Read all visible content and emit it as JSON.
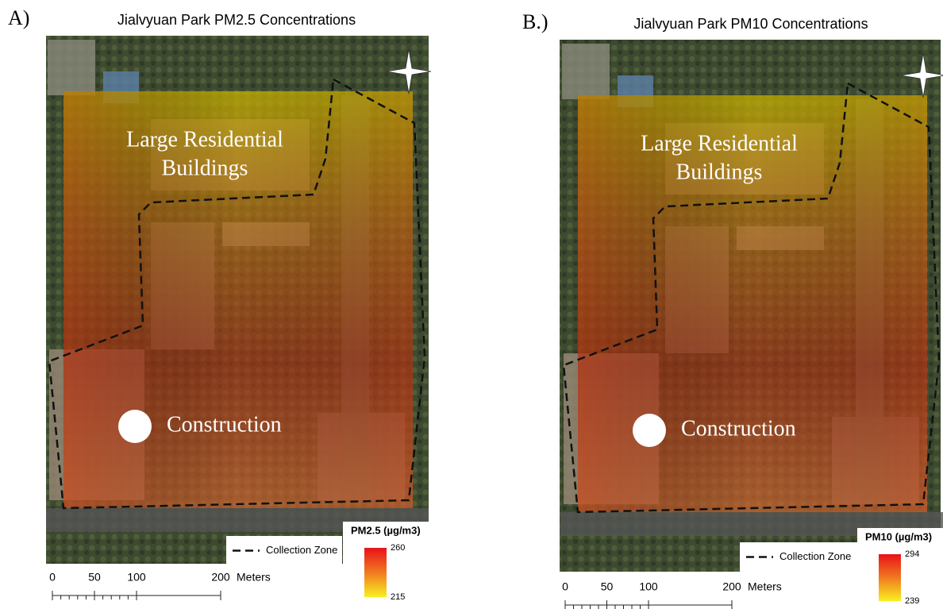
{
  "panels": [
    {
      "label": "A)",
      "title": "Jialvyuan Park PM2.5 Concentrations",
      "annotations": {
        "residential": [
          "Large Residential",
          "Buildings"
        ],
        "construction": "Construction"
      },
      "legend": {
        "title": "PM2.5 (µg/m3)",
        "max": 260,
        "min": 215,
        "collection_zone": "Collection Zone"
      },
      "scale_bar": {
        "ticks": [
          0,
          50,
          100,
          200
        ],
        "unit": "Meters"
      }
    },
    {
      "label": "B.)",
      "title": "Jialvyuan Park PM10 Concentrations",
      "annotations": {
        "residential": [
          "Large Residential",
          "Buildings"
        ],
        "construction": "Construction"
      },
      "legend": {
        "title": "PM10 (µg/m3)",
        "max": 294,
        "min": 239,
        "collection_zone": "Collection Zone"
      },
      "scale_bar": {
        "ticks": [
          0,
          50,
          100,
          200
        ],
        "unit": "Meters"
      }
    }
  ]
}
